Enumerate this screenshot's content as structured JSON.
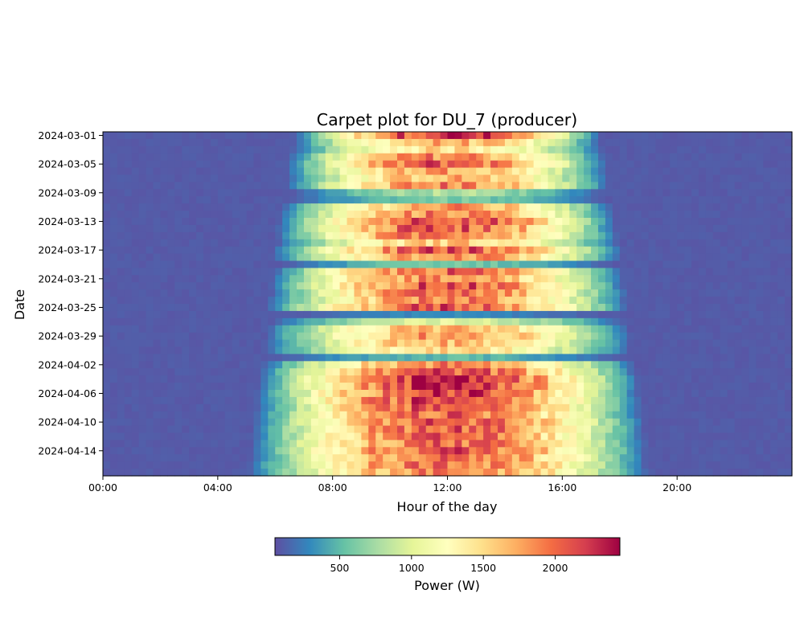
{
  "chart_data": {
    "type": "heatmap",
    "title": "Carpet plot for DU_7 (producer)",
    "xlabel": "Hour of the day",
    "ylabel": "Date",
    "x_tick_labels": [
      "00:00",
      "04:00",
      "08:00",
      "12:00",
      "16:00",
      "20:00"
    ],
    "x_tick_hours": [
      0,
      4,
      8,
      12,
      16,
      20
    ],
    "xlim_hours": [
      0,
      24
    ],
    "x_bin_minutes": 15,
    "y_tick_labels": [
      "2024-03-01",
      "2024-03-05",
      "2024-03-09",
      "2024-03-13",
      "2024-03-17",
      "2024-03-21",
      "2024-03-25",
      "2024-03-29",
      "2024-04-02",
      "2024-04-06",
      "2024-04-10",
      "2024-04-14"
    ],
    "dates": [
      "2024-03-01",
      "2024-03-02",
      "2024-03-03",
      "2024-03-04",
      "2024-03-05",
      "2024-03-06",
      "2024-03-07",
      "2024-03-08",
      "2024-03-09",
      "2024-03-10",
      "2024-03-11",
      "2024-03-12",
      "2024-03-13",
      "2024-03-14",
      "2024-03-15",
      "2024-03-16",
      "2024-03-17",
      "2024-03-18",
      "2024-03-19",
      "2024-03-20",
      "2024-03-21",
      "2024-03-22",
      "2024-03-23",
      "2024-03-24",
      "2024-03-25",
      "2024-03-26",
      "2024-03-27",
      "2024-03-28",
      "2024-03-29",
      "2024-03-30",
      "2024-03-31",
      "2024-04-01",
      "2024-04-02",
      "2024-04-03",
      "2024-04-04",
      "2024-04-05",
      "2024-04-06",
      "2024-04-07",
      "2024-04-08",
      "2024-04-09",
      "2024-04-10",
      "2024-04-11",
      "2024-04-12",
      "2024-04-13",
      "2024-04-14",
      "2024-04-15",
      "2024-04-16",
      "2024-04-17"
    ],
    "daily_peak_w": [
      2300,
      1700,
      1500,
      1900,
      2100,
      1800,
      1700,
      1900,
      800,
      600,
      1800,
      1900,
      2200,
      2100,
      2000,
      1600,
      2100,
      1900,
      600,
      2000,
      1900,
      2100,
      2000,
      1900,
      2100,
      300,
      1000,
      1700,
      1800,
      1700,
      1500,
      500,
      1900,
      2100,
      2300,
      2300,
      2200,
      2200,
      2100,
      2000,
      2100,
      2100,
      2000,
      2000,
      2100,
      2000,
      2000,
      1900
    ],
    "daily_start_hour": [
      6.6,
      6.5,
      6.4,
      6.3,
      6.3,
      6.2,
      6.2,
      6.2,
      6.3,
      6.1,
      6.1,
      6.0,
      6.0,
      5.9,
      5.9,
      5.9,
      5.8,
      5.8,
      5.8,
      5.8,
      5.7,
      5.7,
      5.7,
      5.6,
      5.6,
      5.6,
      5.6,
      5.5,
      5.5,
      5.5,
      5.4,
      5.4,
      5.4,
      5.3,
      5.3,
      5.3,
      5.2,
      5.2,
      5.2,
      5.1,
      5.1,
      5.1,
      5.0,
      5.0,
      5.0,
      5.0,
      4.9,
      4.9
    ],
    "daily_end_hour": [
      17.4,
      17.5,
      17.6,
      17.6,
      17.7,
      17.7,
      17.8,
      17.8,
      17.8,
      17.9,
      17.9,
      18.0,
      18.0,
      18.0,
      18.1,
      18.1,
      18.2,
      18.2,
      18.2,
      18.3,
      18.3,
      18.3,
      18.4,
      18.4,
      18.4,
      18.5,
      18.5,
      18.5,
      18.6,
      18.6,
      18.6,
      18.7,
      18.7,
      18.7,
      18.8,
      18.8,
      18.8,
      18.9,
      18.9,
      18.9,
      19.0,
      19.0,
      19.0,
      19.1,
      19.1,
      19.1,
      19.1,
      19.2
    ],
    "night_baseline_w": 80,
    "colorbar": {
      "label": "Power (W)",
      "ticks": [
        500,
        1000,
        1500,
        2000
      ],
      "range": [
        50,
        2450
      ],
      "colormap": "Spectral_r"
    }
  }
}
